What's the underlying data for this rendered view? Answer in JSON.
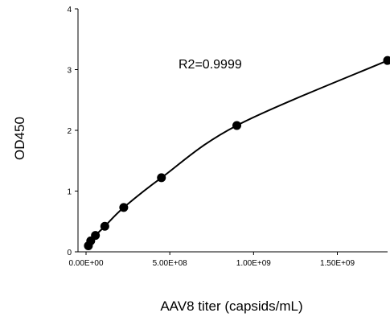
{
  "chart_data": {
    "type": "scatter",
    "title": "",
    "xlabel": "AAV8 titer (capsids/mL)",
    "ylabel": "OD450",
    "annotation": "R2=0.9999",
    "xlim": [
      0,
      1800000000
    ],
    "ylim": [
      0,
      4
    ],
    "x_ticks": [
      {
        "value": 0,
        "label": "0.00E+00"
      },
      {
        "value": 500000000,
        "label": "5.00E+08"
      },
      {
        "value": 1000000000,
        "label": "1.00E+09"
      },
      {
        "value": 1500000000,
        "label": "1.50E+09"
      }
    ],
    "y_ticks": [
      {
        "value": 0,
        "label": "0"
      },
      {
        "value": 1,
        "label": "1"
      },
      {
        "value": 2,
        "label": "2"
      },
      {
        "value": 3,
        "label": "3"
      },
      {
        "value": 4,
        "label": "4"
      }
    ],
    "grid": false,
    "series": [
      {
        "points": [
          {
            "x": 14000000,
            "y": 0.1
          },
          {
            "x": 28000000,
            "y": 0.18
          },
          {
            "x": 56000000,
            "y": 0.27
          },
          {
            "x": 112000000,
            "y": 0.42
          },
          {
            "x": 225000000,
            "y": 0.73
          },
          {
            "x": 450000000,
            "y": 1.22
          },
          {
            "x": 900000000,
            "y": 2.08
          },
          {
            "x": 1800000000,
            "y": 3.15
          }
        ],
        "fit_curve": true,
        "color": "#000000"
      }
    ]
  }
}
